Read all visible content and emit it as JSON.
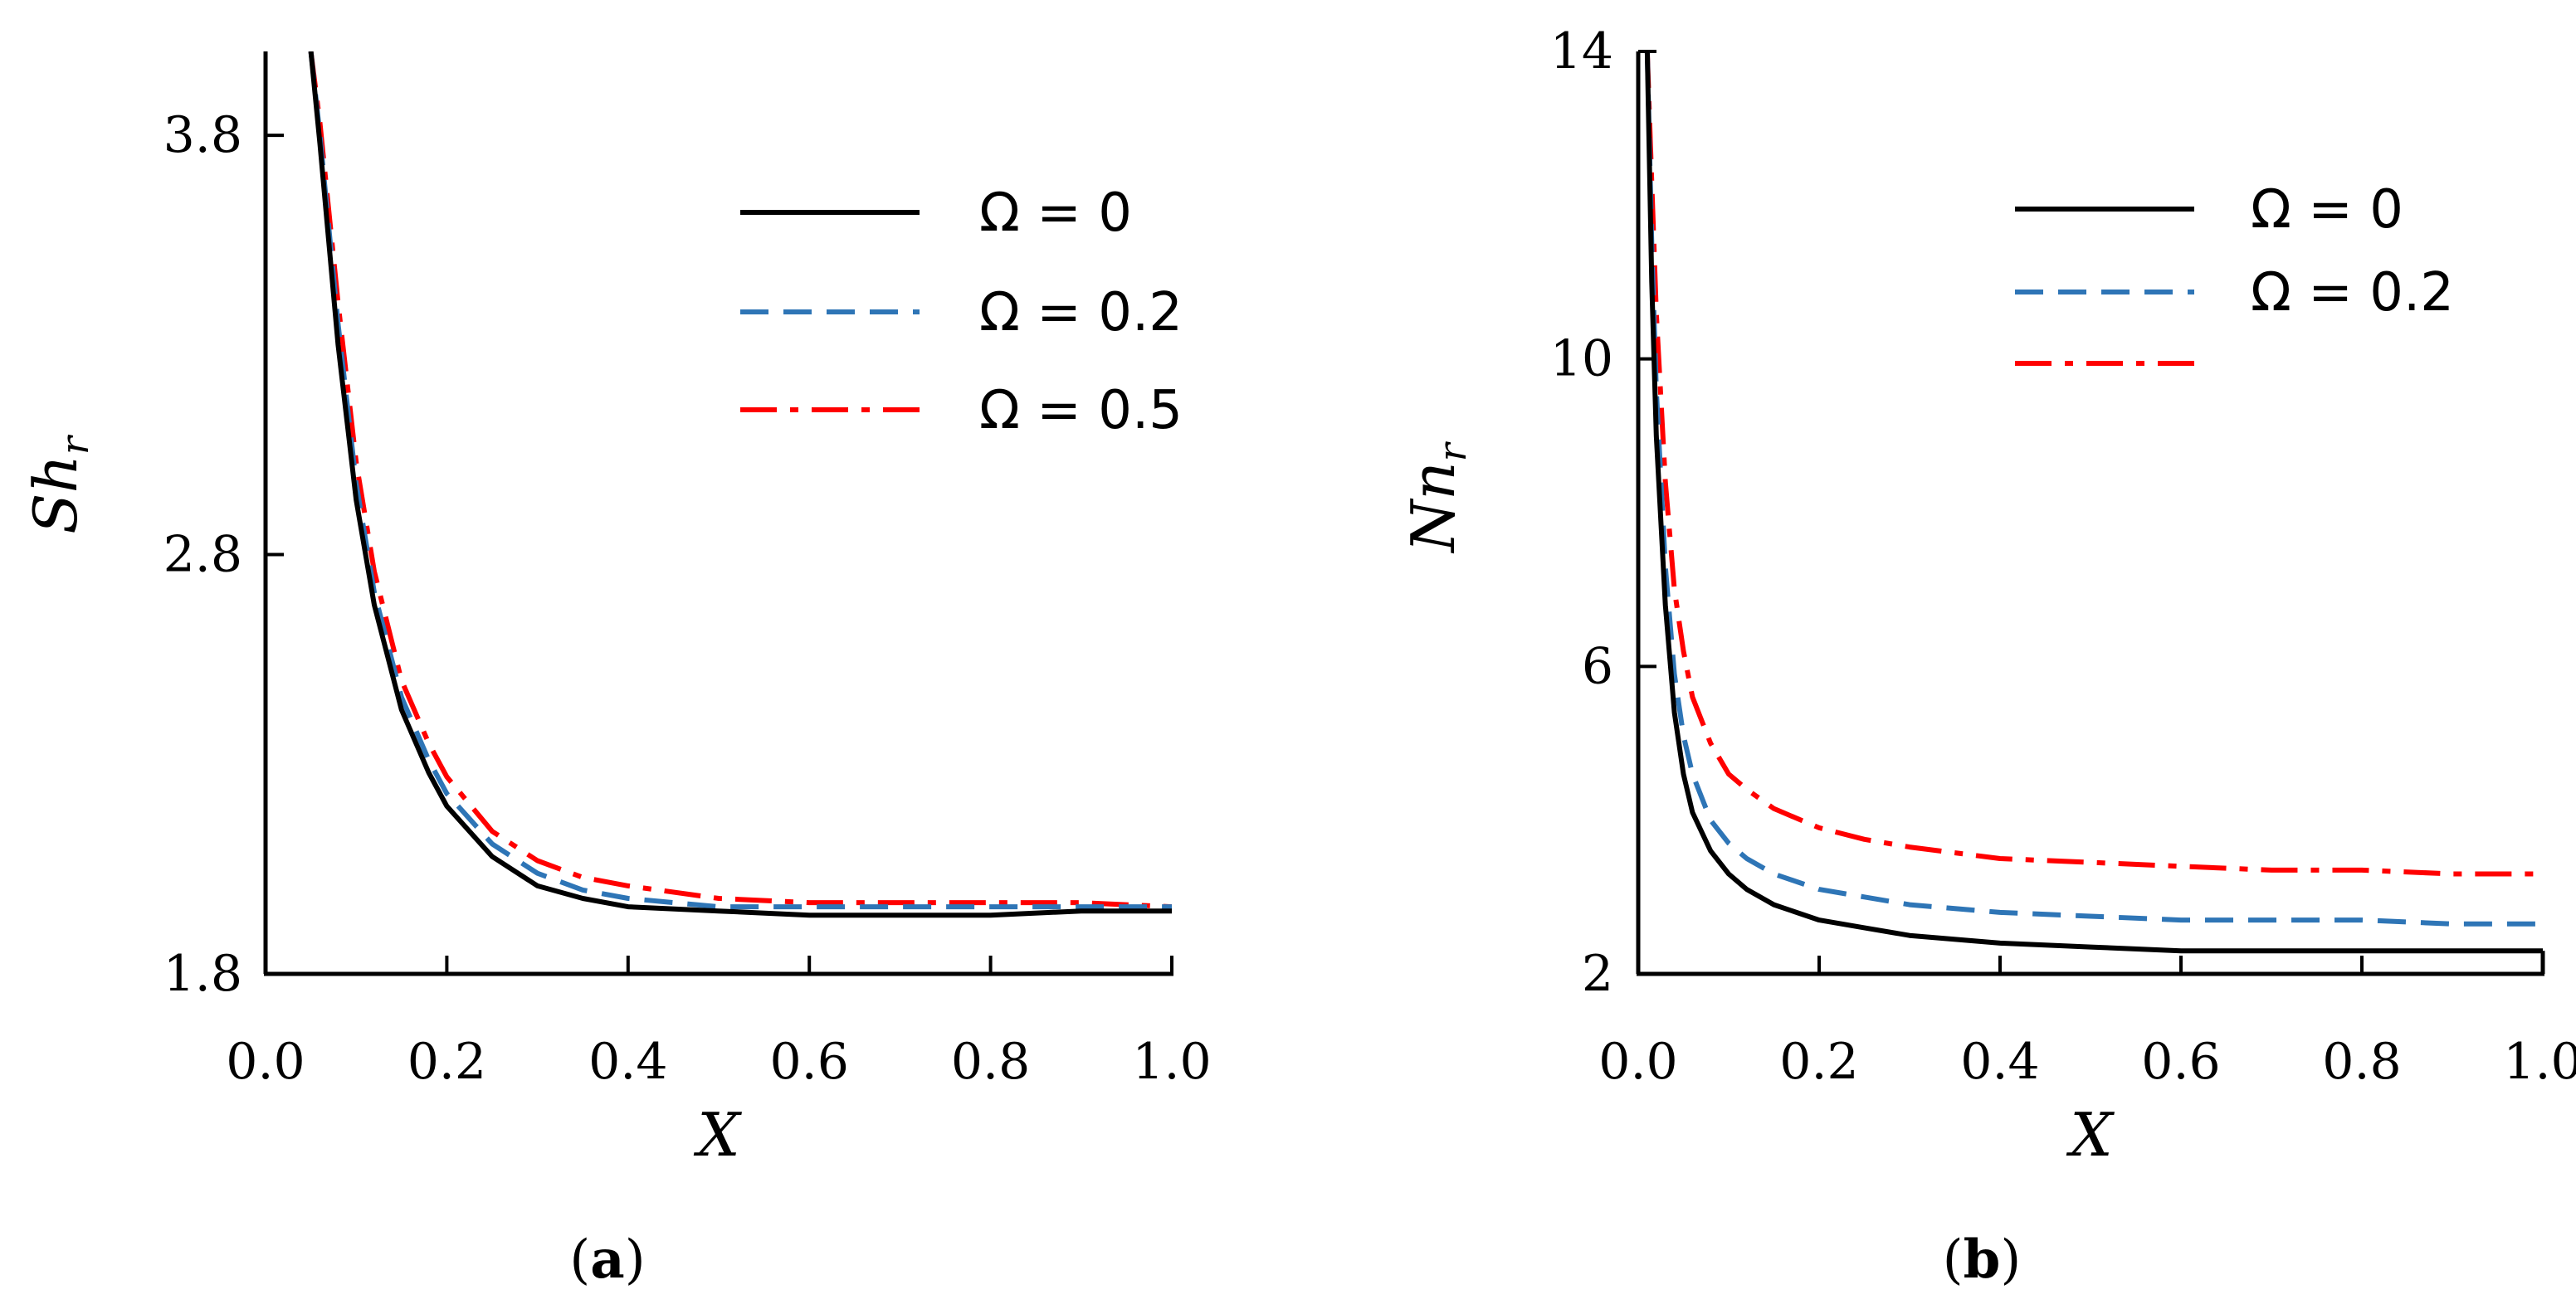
{
  "chart_data": [
    {
      "type": "line",
      "caption": "(a)",
      "caption_letter": "a",
      "xlabel": "X",
      "ylabel": "Sh",
      "ylabel_sub": "r",
      "xlim": [
        0,
        1
      ],
      "ylim": [
        1.8,
        4.0
      ],
      "xticks": [
        "0.0",
        "0.2",
        "0.4",
        "0.6",
        "0.8",
        "1.0"
      ],
      "yticks": [
        "1.8",
        "2.8",
        "3.8"
      ],
      "legend_position": "top-right",
      "series": [
        {
          "name": "Ω = 0",
          "color": "#000000",
          "dash": "solid",
          "x": [
            0.05,
            0.06,
            0.08,
            0.1,
            0.12,
            0.15,
            0.18,
            0.2,
            0.25,
            0.3,
            0.35,
            0.4,
            0.5,
            0.6,
            0.7,
            0.8,
            0.9,
            1.0
          ],
          "y": [
            4.0,
            3.78,
            3.3,
            2.93,
            2.68,
            2.43,
            2.28,
            2.2,
            2.08,
            2.01,
            1.98,
            1.96,
            1.95,
            1.94,
            1.94,
            1.94,
            1.95,
            1.95
          ]
        },
        {
          "name": "Ω = 0.2",
          "color": "#2e75b6",
          "dash": "dashed",
          "x": [
            0.05,
            0.06,
            0.08,
            0.1,
            0.12,
            0.15,
            0.18,
            0.2,
            0.25,
            0.3,
            0.35,
            0.4,
            0.5,
            0.6,
            0.7,
            0.8,
            0.9,
            1.0
          ],
          "y": [
            4.0,
            3.8,
            3.35,
            2.97,
            2.71,
            2.46,
            2.31,
            2.23,
            2.11,
            2.04,
            2.0,
            1.98,
            1.96,
            1.96,
            1.96,
            1.96,
            1.96,
            1.96
          ]
        },
        {
          "name": "Ω = 0.5",
          "color": "#ff0000",
          "dash": "dashdot",
          "x": [
            0.05,
            0.06,
            0.08,
            0.1,
            0.12,
            0.15,
            0.18,
            0.2,
            0.25,
            0.3,
            0.35,
            0.4,
            0.5,
            0.6,
            0.7,
            0.8,
            0.9,
            1.0
          ],
          "y": [
            4.0,
            3.83,
            3.4,
            3.02,
            2.76,
            2.5,
            2.35,
            2.27,
            2.14,
            2.07,
            2.03,
            2.01,
            1.98,
            1.97,
            1.97,
            1.97,
            1.97,
            1.96
          ]
        }
      ]
    },
    {
      "type": "line",
      "caption": "(b)",
      "caption_letter": "b",
      "xlabel": "X",
      "ylabel": "Nn",
      "ylabel_sub": "r",
      "xlim": [
        0,
        1
      ],
      "ylim": [
        2,
        14
      ],
      "xticks": [
        "0.0",
        "0.2",
        "0.4",
        "0.6",
        "0.8",
        "1.0"
      ],
      "yticks": [
        "2",
        "6",
        "10",
        "14"
      ],
      "legend_position": "top-right",
      "series": [
        {
          "name": "Ω = 0",
          "color": "#000000",
          "dash": "solid",
          "x": [
            0.01,
            0.015,
            0.02,
            0.03,
            0.04,
            0.05,
            0.06,
            0.08,
            0.1,
            0.12,
            0.15,
            0.2,
            0.25,
            0.3,
            0.4,
            0.5,
            0.6,
            0.7,
            0.8,
            0.9,
            1.0
          ],
          "y": [
            14.0,
            11.0,
            9.0,
            6.8,
            5.4,
            4.6,
            4.1,
            3.6,
            3.3,
            3.1,
            2.9,
            2.7,
            2.6,
            2.5,
            2.4,
            2.35,
            2.3,
            2.3,
            2.3,
            2.3,
            2.3
          ]
        },
        {
          "name": "Ω = 0.2",
          "color": "#2e75b6",
          "dash": "dashed",
          "x": [
            0.01,
            0.015,
            0.02,
            0.03,
            0.04,
            0.05,
            0.06,
            0.08,
            0.1,
            0.12,
            0.15,
            0.2,
            0.25,
            0.3,
            0.4,
            0.5,
            0.6,
            0.7,
            0.8,
            0.9,
            1.0
          ],
          "y": [
            14.0,
            11.5,
            9.6,
            7.3,
            5.9,
            5.1,
            4.6,
            4.0,
            3.7,
            3.5,
            3.3,
            3.1,
            3.0,
            2.9,
            2.8,
            2.75,
            2.7,
            2.7,
            2.7,
            2.65,
            2.65
          ]
        },
        {
          "name": "",
          "color": "#ff0000",
          "dash": "dashdot",
          "x": [
            0.01,
            0.015,
            0.02,
            0.03,
            0.04,
            0.05,
            0.06,
            0.08,
            0.1,
            0.12,
            0.15,
            0.2,
            0.25,
            0.3,
            0.4,
            0.5,
            0.6,
            0.7,
            0.8,
            0.9,
            1.0
          ],
          "y": [
            14.0,
            12.3,
            10.6,
            8.4,
            7.0,
            6.2,
            5.6,
            5.0,
            4.6,
            4.4,
            4.15,
            3.9,
            3.75,
            3.65,
            3.5,
            3.45,
            3.4,
            3.35,
            3.35,
            3.3,
            3.3
          ]
        }
      ]
    }
  ]
}
